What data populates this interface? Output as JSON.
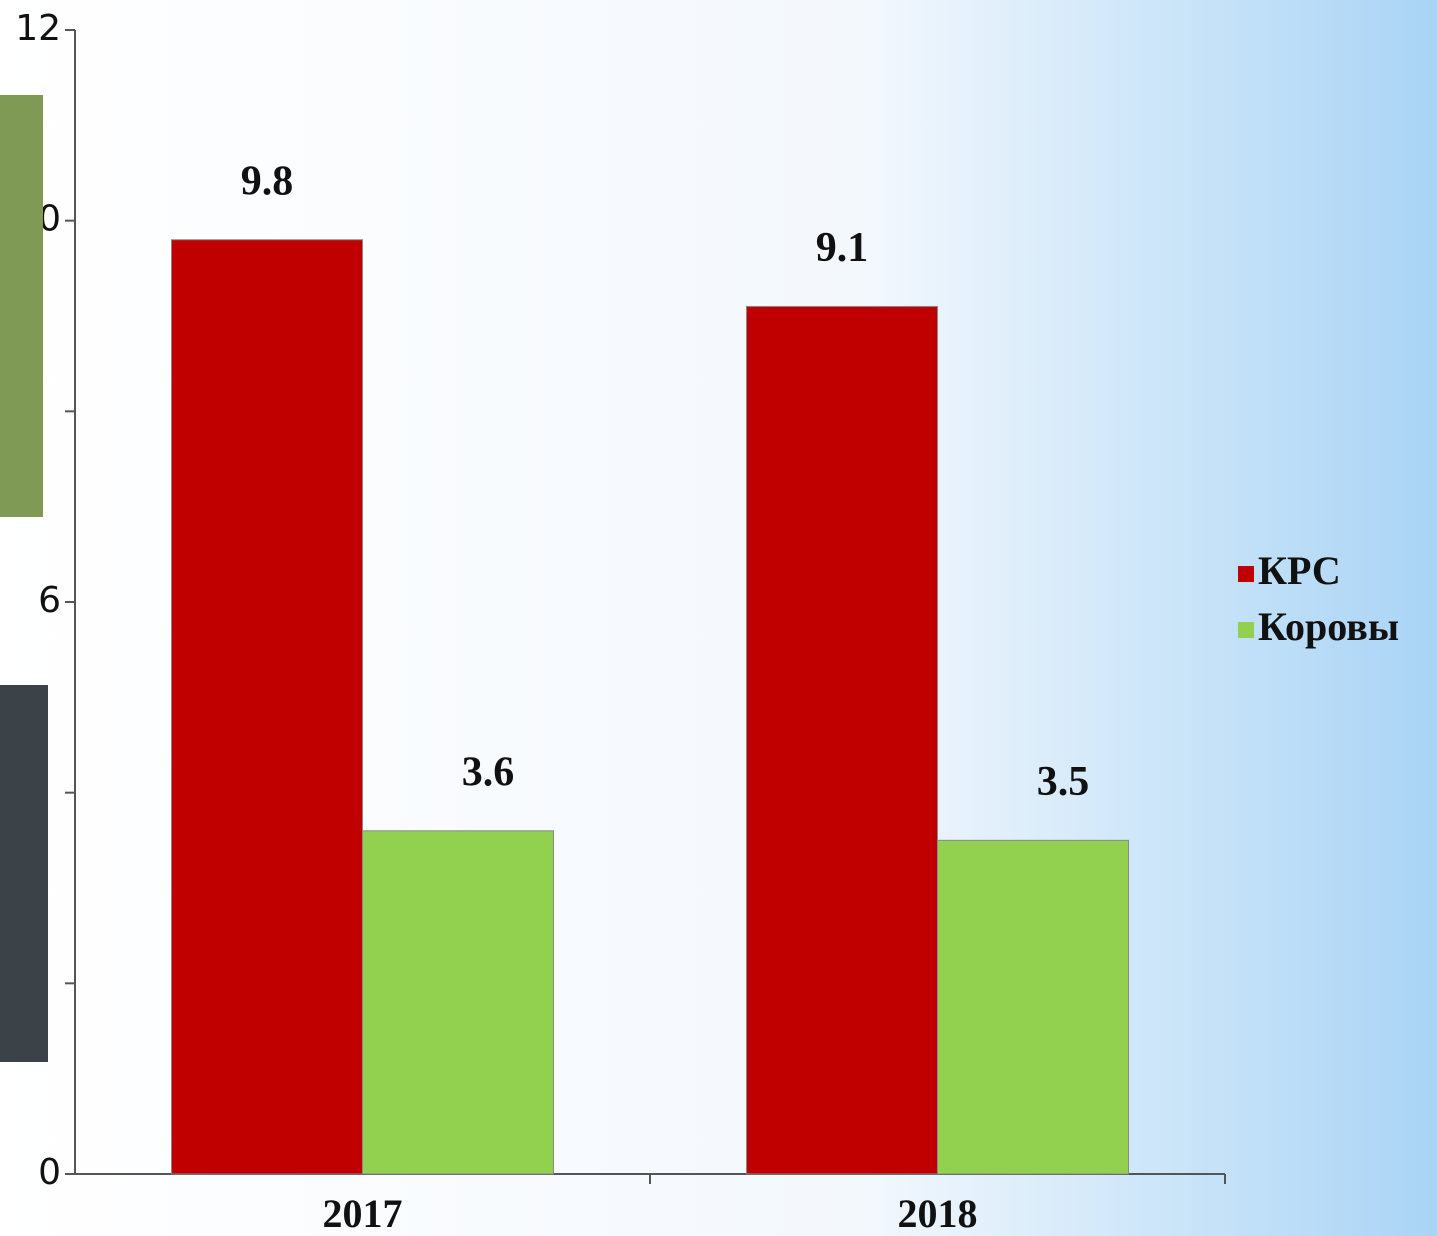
{
  "chart_data": {
    "type": "bar",
    "categories": [
      "2017",
      "2018"
    ],
    "series": [
      {
        "name": "КРС",
        "color": "#c00000",
        "values": [
          9.8,
          9.1
        ]
      },
      {
        "name": "Коровы",
        "color": "#92d050",
        "values": [
          3.6,
          3.5
        ]
      }
    ],
    "ylim": [
      0,
      12
    ],
    "yticks": [
      0,
      {
        "value": 2,
        "label": null
      },
      {
        "value": 4,
        "label": null
      },
      6,
      {
        "value": 8,
        "label": null
      },
      10,
      12
    ],
    "legend": "right"
  }
}
